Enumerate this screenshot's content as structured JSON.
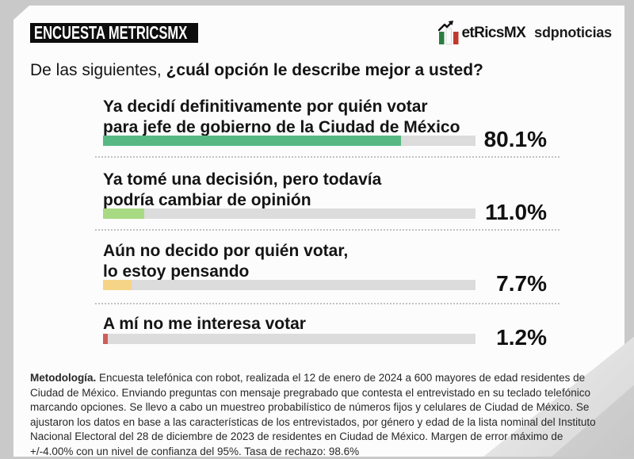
{
  "page": {
    "background_color": "#c9c9c9",
    "card_color": "#fcfcfc"
  },
  "header": {
    "badge": "ENCUESTA METRICSMX",
    "brand": {
      "name": "MetricsMX",
      "logo_text": "etRicsMX",
      "icon": "bar-chart-arrow-icon",
      "colors": {
        "green": "#2a7d3f",
        "red": "#bf3a2e",
        "arrow": "#111111"
      }
    },
    "partner": "sdpnoticias"
  },
  "question": {
    "prefix": "De las siguientes, ",
    "emphasis": "¿cuál opción le describe mejor a usted?"
  },
  "chart_data": {
    "type": "bar",
    "orientation": "horizontal",
    "title": "De las siguientes, ¿cuál opción le describe mejor a usted?",
    "categories": [
      "Ya decidí definitivamente por quién votar para jefe de gobierno de la Ciudad de México",
      "Ya tomé una decisión, pero todavía podría cambiar de opinión",
      "Aún no decido por quién votar, lo estoy pensando",
      "A mí no me interesa votar"
    ],
    "values": [
      80.1,
      11.0,
      7.7,
      1.2
    ],
    "value_labels": [
      "80.1%",
      "11.0%",
      "7.7%",
      "1.2%"
    ],
    "bar_colors": [
      "#58b884",
      "#a7da82",
      "#f5d488",
      "#cd5f5a"
    ],
    "track_color": "#dcdcdc",
    "xlim": [
      0,
      100
    ],
    "value_label_position": "right",
    "grid": false,
    "legend": false
  },
  "options": [
    {
      "line1": "Ya decidí definitivamente por quién votar",
      "line2": "para jefe de gobierno de la Ciudad de México"
    },
    {
      "line1": "Ya tomé una decisión, pero todavía",
      "line2": "podría cambiar de opinión"
    },
    {
      "line1": "Aún no decido por quién votar,",
      "line2": "lo estoy pensando"
    },
    {
      "line1": "A mí no me interesa votar",
      "line2": ""
    }
  ],
  "methodology": {
    "lead": "Metodología.",
    "body": " Encuesta telefónica con robot, realizada el 12 de enero de 2024 a 600 mayores de edad residentes de Ciudad de México. Enviando preguntas con mensaje pregrabado que contesta el entrevistado en su teclado telefónico marcando opciones. Se llevo a cabo un muestreo probabilístico de números fijos y celulares de Ciudad de México. Se ajustaron los datos en base a las características de los entrevistados, por género y edad de la lista nominal del Instituto Nacional Electoral del 28 de diciembre de 2023 de residentes en Ciudad de México. Margen de error máximo de +/-4.00% con un nivel de confianza del 95%. Tasa de rechazo: 98.6%"
  }
}
